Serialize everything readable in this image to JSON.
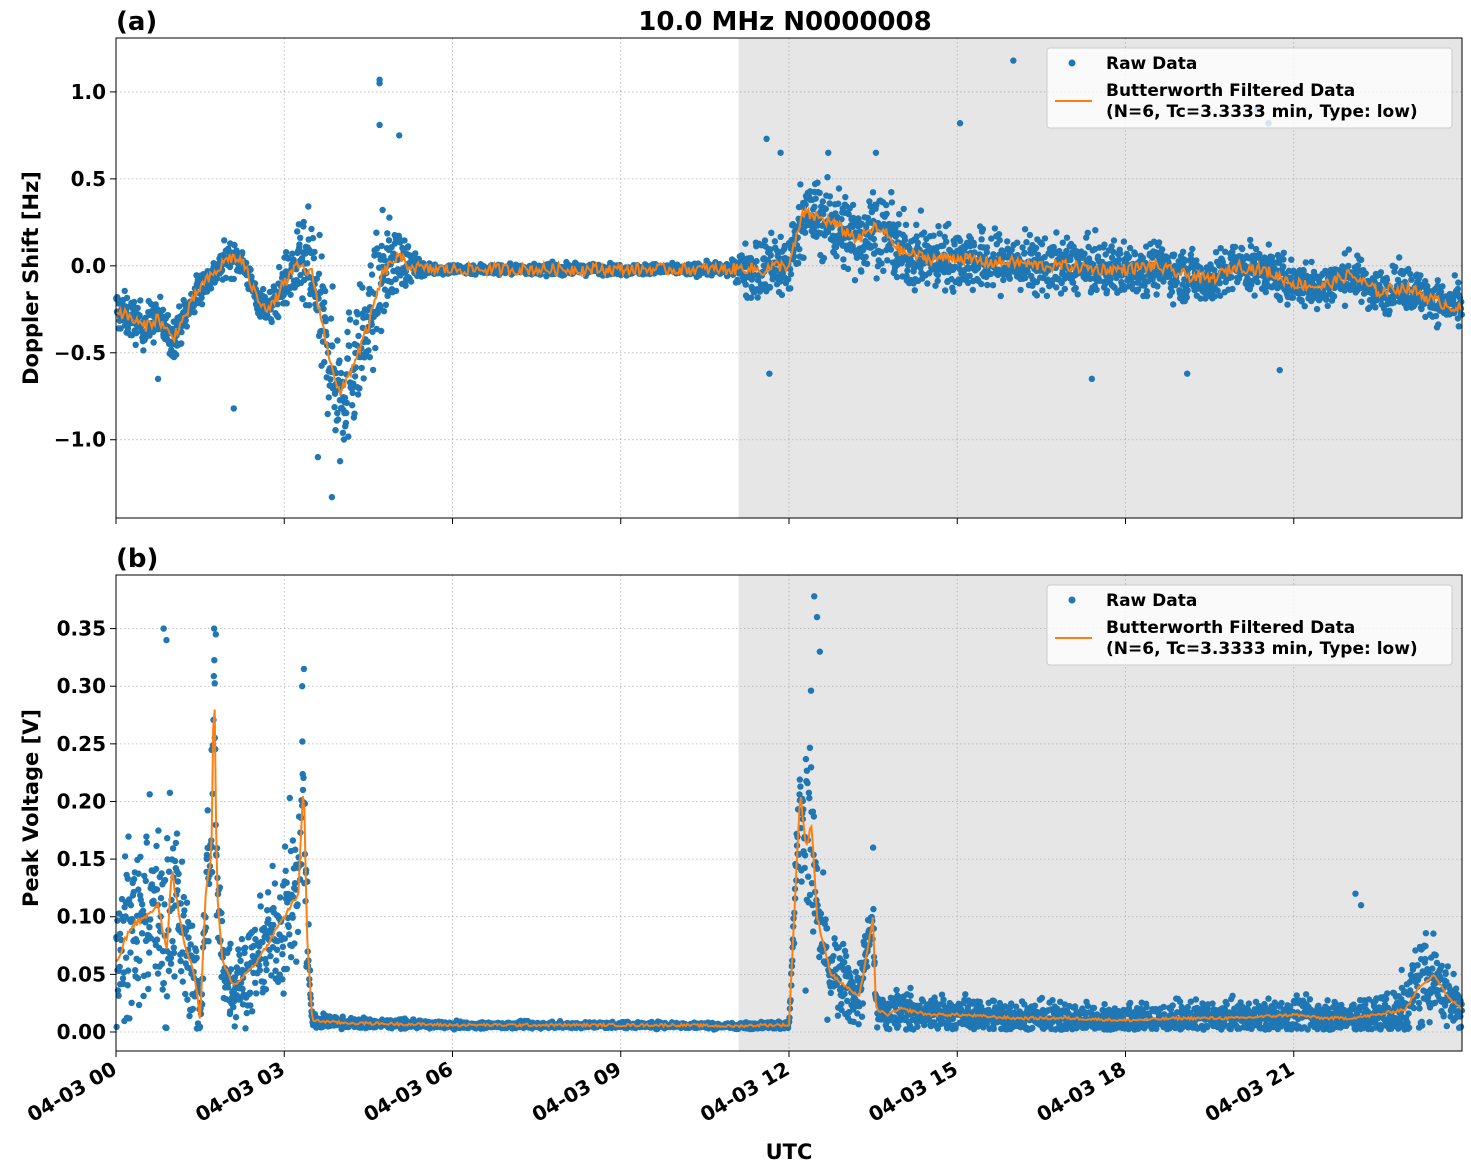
{
  "figure": {
    "title": "10.0 MHz N0000008",
    "xlabel": "UTC",
    "x_tick_labels": [
      "04-03 00",
      "04-03 03",
      "04-03 06",
      "04-03 09",
      "04-03 12",
      "04-03 15",
      "04-03 18",
      "04-03 21"
    ],
    "shaded_region_hours": [
      11.1,
      24.0
    ],
    "colors": {
      "raw": "#1f77b4",
      "filtered": "#ff7f0e",
      "shade": "#e6e6e6",
      "grid": "#b0b0b0"
    }
  },
  "legend": {
    "raw_label": "Raw Data",
    "filtered_label_line1": "Butterworth Filtered Data",
    "filtered_label_line2": "(N=6, Tc=3.3333 min, Type: low)"
  },
  "chart_data": [
    {
      "type": "scatter",
      "panel_label": "(a)",
      "ylabel": "Doppler Shift [Hz]",
      "xlim_hours": [
        0,
        24
      ],
      "ylim": [
        -1.45,
        1.31
      ],
      "y_ticks": [
        -1.0,
        -0.5,
        0.0,
        0.5,
        1.0
      ],
      "y_tick_labels": [
        "−1.0",
        "−0.5",
        "0.0",
        "0.5",
        "1.0"
      ],
      "grid": true,
      "legend_position": "upper right",
      "series": [
        {
          "name": "Butterworth Filtered Data",
          "x_hours": [
            0,
            0.25,
            0.5,
            0.75,
            1.0,
            1.25,
            1.5,
            1.75,
            2.0,
            2.25,
            2.5,
            2.75,
            3.0,
            3.25,
            3.5,
            3.75,
            4.0,
            4.25,
            4.5,
            4.75,
            5.0,
            5.25,
            5.5,
            6.0,
            7.0,
            8.0,
            9.0,
            10.0,
            11.0,
            11.25,
            11.5,
            11.75,
            12.0,
            12.25,
            12.5,
            12.75,
            13.0,
            13.25,
            13.5,
            13.75,
            14.0,
            14.5,
            15.0,
            15.5,
            16.0,
            16.5,
            17.0,
            17.5,
            18.0,
            18.5,
            19.0,
            19.5,
            20.0,
            20.5,
            21.0,
            21.5,
            22.0,
            22.5,
            23.0,
            23.5,
            24.0
          ],
          "y": [
            -0.25,
            -0.3,
            -0.35,
            -0.3,
            -0.42,
            -0.28,
            -0.12,
            -0.05,
            0.05,
            0.03,
            -0.18,
            -0.25,
            -0.1,
            0.0,
            -0.05,
            -0.45,
            -0.75,
            -0.55,
            -0.35,
            -0.05,
            0.05,
            0.0,
            -0.02,
            -0.02,
            -0.02,
            -0.02,
            -0.02,
            -0.02,
            -0.02,
            -0.01,
            -0.03,
            0.0,
            0.0,
            0.3,
            0.28,
            0.25,
            0.2,
            0.15,
            0.22,
            0.18,
            0.08,
            0.04,
            0.05,
            0.02,
            0.02,
            0.0,
            0.0,
            -0.02,
            -0.02,
            0.0,
            -0.05,
            -0.08,
            0.0,
            -0.03,
            -0.1,
            -0.12,
            -0.05,
            -0.15,
            -0.12,
            -0.2,
            -0.25
          ]
        },
        {
          "name": "Raw Data",
          "spread_hz": [
            0.12,
            0.12,
            0.12,
            0.12,
            0.12,
            0.1,
            0.1,
            0.08,
            0.1,
            0.08,
            0.08,
            0.1,
            0.15,
            0.2,
            0.35,
            0.35,
            0.4,
            0.35,
            0.3,
            0.3,
            0.2,
            0.1,
            0.03,
            0.03,
            0.03,
            0.03,
            0.03,
            0.03,
            0.04,
            0.15,
            0.2,
            0.2,
            0.2,
            0.2,
            0.22,
            0.22,
            0.22,
            0.22,
            0.22,
            0.2,
            0.2,
            0.18,
            0.18,
            0.18,
            0.16,
            0.16,
            0.15,
            0.15,
            0.15,
            0.14,
            0.14,
            0.14,
            0.14,
            0.13,
            0.13,
            0.13,
            0.12,
            0.12,
            0.12,
            0.12,
            0.12
          ],
          "outliers": [
            [
              4.7,
              1.07
            ],
            [
              4.7,
              1.05
            ],
            [
              4.7,
              0.81
            ],
            [
              5.05,
              0.75
            ],
            [
              3.85,
              -1.33
            ],
            [
              3.6,
              -1.1
            ],
            [
              0.75,
              -0.65
            ],
            [
              2.1,
              -0.82
            ],
            [
              11.6,
              0.73
            ],
            [
              11.85,
              0.65
            ],
            [
              12.7,
              0.65
            ],
            [
              13.55,
              0.65
            ],
            [
              15.05,
              0.82
            ],
            [
              16.0,
              1.18
            ],
            [
              20.35,
              0.9
            ],
            [
              20.55,
              0.82
            ],
            [
              17.4,
              -0.65
            ],
            [
              19.1,
              -0.62
            ],
            [
              20.75,
              -0.6
            ],
            [
              11.65,
              -0.62
            ]
          ]
        }
      ]
    },
    {
      "type": "scatter",
      "panel_label": "(b)",
      "ylabel": "Peak Voltage [V]",
      "xlim_hours": [
        0,
        24
      ],
      "ylim": [
        -0.0165,
        0.3965
      ],
      "y_ticks": [
        0.0,
        0.05,
        0.1,
        0.15,
        0.2,
        0.25,
        0.3,
        0.35
      ],
      "y_tick_labels": [
        "0.00",
        "0.05",
        "0.10",
        "0.15",
        "0.20",
        "0.25",
        "0.30",
        "0.35"
      ],
      "grid": true,
      "legend_position": "upper right",
      "series": [
        {
          "name": "Butterworth Filtered Data",
          "x_hours": [
            0,
            0.25,
            0.5,
            0.75,
            0.9,
            1.0,
            1.2,
            1.4,
            1.5,
            1.6,
            1.7,
            1.75,
            1.8,
            1.9,
            2.1,
            2.3,
            2.5,
            2.75,
            3.0,
            3.25,
            3.35,
            3.4,
            3.5,
            3.75,
            4.0,
            5.0,
            6.0,
            7.0,
            8.0,
            9.0,
            10.0,
            11.0,
            11.5,
            12.0,
            12.2,
            12.3,
            12.4,
            12.5,
            12.6,
            12.75,
            13.0,
            13.25,
            13.5,
            13.55,
            13.75,
            14.0,
            14.5,
            15.0,
            16.0,
            17.0,
            18.0,
            19.0,
            20.0,
            21.0,
            21.5,
            22.0,
            22.5,
            23.0,
            23.25,
            23.5,
            23.75,
            24.0
          ],
          "y": [
            0.06,
            0.09,
            0.1,
            0.11,
            0.07,
            0.14,
            0.08,
            0.05,
            0.01,
            0.12,
            0.15,
            0.32,
            0.12,
            0.06,
            0.04,
            0.05,
            0.06,
            0.08,
            0.1,
            0.12,
            0.22,
            0.09,
            0.01,
            0.009,
            0.008,
            0.007,
            0.006,
            0.006,
            0.006,
            0.006,
            0.006,
            0.005,
            0.006,
            0.006,
            0.21,
            0.16,
            0.18,
            0.1,
            0.08,
            0.05,
            0.04,
            0.03,
            0.1,
            0.02,
            0.015,
            0.02,
            0.015,
            0.015,
            0.012,
            0.012,
            0.01,
            0.012,
            0.012,
            0.015,
            0.012,
            0.012,
            0.015,
            0.02,
            0.04,
            0.05,
            0.03,
            0.02
          ]
        },
        {
          "name": "Raw Data",
          "spread_v": [
            0.07,
            0.08,
            0.08,
            0.08,
            0.1,
            0.1,
            0.06,
            0.05,
            0.03,
            0.08,
            0.1,
            0.03,
            0.08,
            0.05,
            0.04,
            0.04,
            0.04,
            0.05,
            0.07,
            0.08,
            0.09,
            0.06,
            0.01,
            0.006,
            0.005,
            0.004,
            0.003,
            0.003,
            0.003,
            0.003,
            0.003,
            0.003,
            0.003,
            0.004,
            0.05,
            0.1,
            0.12,
            0.06,
            0.05,
            0.04,
            0.035,
            0.03,
            0.04,
            0.025,
            0.02,
            0.02,
            0.018,
            0.018,
            0.016,
            0.016,
            0.016,
            0.016,
            0.016,
            0.016,
            0.016,
            0.016,
            0.02,
            0.04,
            0.04,
            0.04,
            0.03,
            0.02
          ],
          "outliers": [
            [
              0.85,
              0.35
            ],
            [
              0.9,
              0.34
            ],
            [
              1.75,
              0.35
            ],
            [
              1.78,
              0.345
            ],
            [
              3.35,
              0.315
            ],
            [
              3.32,
              0.3
            ],
            [
              12.45,
              0.378
            ],
            [
              12.5,
              0.36
            ],
            [
              12.55,
              0.33
            ],
            [
              13.5,
              0.16
            ],
            [
              22.1,
              0.12
            ],
            [
              22.2,
              0.11
            ]
          ]
        }
      ]
    }
  ]
}
